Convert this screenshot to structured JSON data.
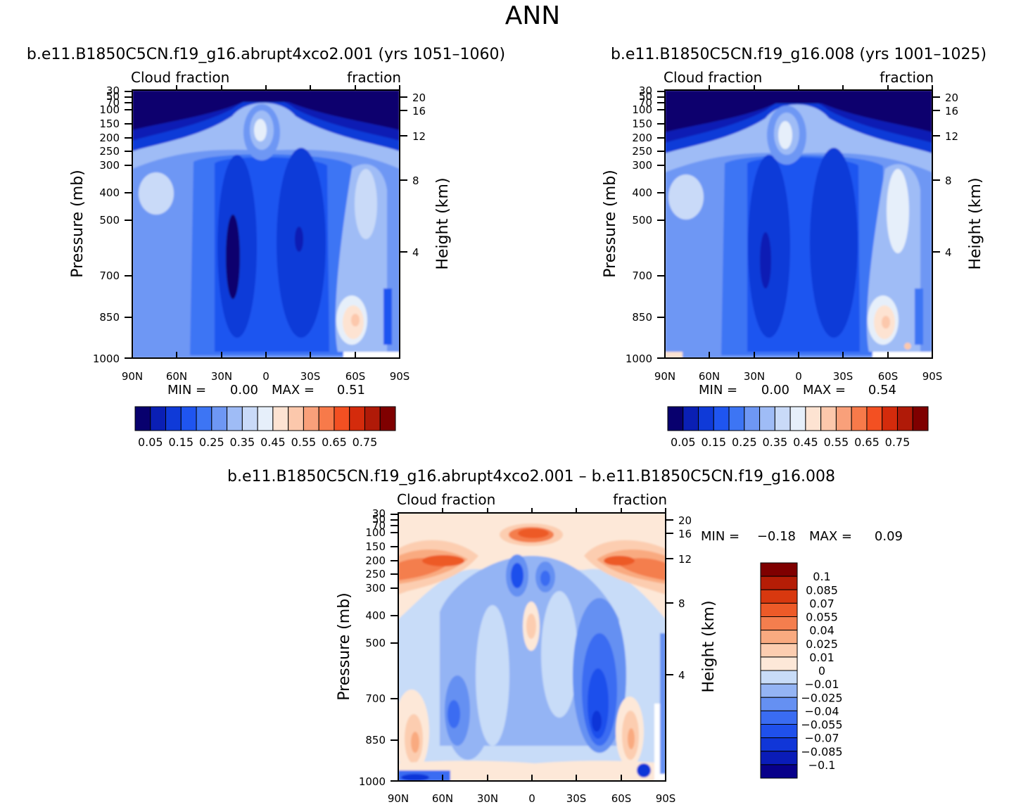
{
  "page_title": "ANN",
  "colors": {
    "panel_scale": [
      "#08006e",
      "#0a1fb4",
      "#0f3ad8",
      "#1f55f0",
      "#3d75f4",
      "#6e97f4",
      "#9fbcf6",
      "#c9daf8",
      "#e6effa",
      "#fde3d2",
      "#fcc8ac",
      "#f9a07a",
      "#f77a4a",
      "#f35022",
      "#d42b0c",
      "#b01a08",
      "#7f0000"
    ],
    "diff_scale": [
      "#08008a",
      "#0a1cb8",
      "#1036d8",
      "#1f50ec",
      "#3a6cf2",
      "#6590f2",
      "#94b4f4",
      "#c8dcf8",
      "#fde8d8",
      "#fccdb0",
      "#f9aa80",
      "#f47e4e",
      "#ed5a28",
      "#d8380f",
      "#b51d06",
      "#7f0000"
    ]
  },
  "chart_data": [
    {
      "type": "heatmap",
      "title": "b.e11.B1850C5CN.f19_g16.abrupt4xco2.001  (yrs  1051–1060)",
      "left_subtitle": "Cloud  fraction",
      "right_subtitle": "fraction",
      "x_ticks": [
        "90N",
        "60N",
        "30N",
        "0",
        "30S",
        "60S",
        "90S"
      ],
      "y_ticks": [
        "30",
        "50",
        "70",
        "100",
        "150",
        "200",
        "250",
        "300",
        "400",
        "500",
        "700",
        "850",
        "1000"
      ],
      "ylabel": "Pressure  (mb)",
      "right_ticks": [
        "20",
        "16",
        "12",
        "8",
        "4"
      ],
      "right_label": "Height  (km)",
      "min_label": "MIN  =",
      "min_value": "0.00",
      "max_label": "MAX  =",
      "max_value": "0.51",
      "colorbar_labels": [
        "0.05",
        "0.15",
        "0.25",
        "0.35",
        "0.45",
        "0.55",
        "0.65",
        "0.75"
      ]
    },
    {
      "type": "heatmap",
      "title": "b.e11.B1850C5CN.f19_g16.008  (yrs  1001–1025)",
      "left_subtitle": "Cloud  fraction",
      "right_subtitle": "fraction",
      "x_ticks": [
        "90N",
        "60N",
        "30N",
        "0",
        "30S",
        "60S",
        "90S"
      ],
      "y_ticks": [
        "30",
        "50",
        "70",
        "100",
        "150",
        "200",
        "250",
        "300",
        "400",
        "500",
        "700",
        "850",
        "1000"
      ],
      "ylabel": "Pressure  (mb)",
      "right_ticks": [
        "20",
        "16",
        "12",
        "8",
        "4"
      ],
      "right_label": "Height  (km)",
      "min_label": "MIN  =",
      "min_value": "0.00",
      "max_label": "MAX  =",
      "max_value": "0.54",
      "colorbar_labels": [
        "0.05",
        "0.15",
        "0.25",
        "0.35",
        "0.45",
        "0.55",
        "0.65",
        "0.75"
      ]
    },
    {
      "type": "heatmap",
      "title": "b.e11.B1850C5CN.f19_g16.abrupt4xco2.001  –  b.e11.B1850C5CN.f19_g16.008",
      "left_subtitle": "Cloud  fraction",
      "right_subtitle": "fraction",
      "x_ticks": [
        "90N",
        "60N",
        "30N",
        "0",
        "30S",
        "60S",
        "90S"
      ],
      "y_ticks": [
        "30",
        "50",
        "70",
        "100",
        "150",
        "200",
        "250",
        "300",
        "400",
        "500",
        "700",
        "850",
        "1000"
      ],
      "ylabel": "Pressure  (mb)",
      "right_ticks": [
        "20",
        "16",
        "12",
        "8",
        "4"
      ],
      "right_label": "Height  (km)",
      "min_label": "MIN  =",
      "min_value": "−0.18",
      "max_label": "MAX  =",
      "max_value": "0.09",
      "colorbar_labels": [
        "0.1",
        "0.085",
        "0.07",
        "0.055",
        "0.04",
        "0.025",
        "0.01",
        "0",
        "−0.01",
        "−0.025",
        "−0.04",
        "−0.055",
        "−0.07",
        "−0.085",
        "−0.1"
      ]
    }
  ]
}
